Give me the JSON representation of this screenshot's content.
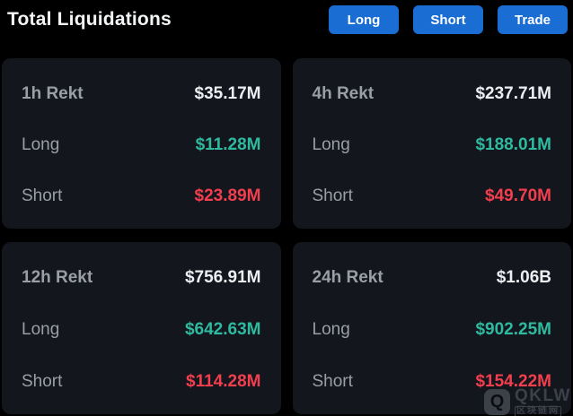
{
  "header": {
    "title": "Total Liquidations",
    "buttons": [
      {
        "label": "Long"
      },
      {
        "label": "Short"
      },
      {
        "label": "Trade"
      }
    ]
  },
  "cards": [
    {
      "period": "1h Rekt",
      "total": "$35.17M",
      "long_label": "Long",
      "long_value": "$11.28M",
      "short_label": "Short",
      "short_value": "$23.89M"
    },
    {
      "period": "4h Rekt",
      "total": "$237.71M",
      "long_label": "Long",
      "long_value": "$188.01M",
      "short_label": "Short",
      "short_value": "$49.70M"
    },
    {
      "period": "12h Rekt",
      "total": "$756.91M",
      "long_label": "Long",
      "long_value": "$642.63M",
      "short_label": "Short",
      "short_value": "$114.28M"
    },
    {
      "period": "24h Rekt",
      "total": "$1.06B",
      "long_label": "Long",
      "long_value": "$902.25M",
      "short_label": "Short",
      "short_value": "$154.22M"
    }
  ],
  "watermark": {
    "logo_letter": "Q",
    "brand": "QKLW",
    "subtitle": "区块链网"
  },
  "colors": {
    "background": "#000000",
    "card": "#14161E",
    "accent_blue": "#1A6DD2",
    "green": "#2EBA9F",
    "red": "#F23E4D",
    "label_gray": "#9A9EA6",
    "value_white": "#EDEEF1",
    "title_white": "#F4F5F6",
    "watermark_gray": "#3C4048"
  }
}
